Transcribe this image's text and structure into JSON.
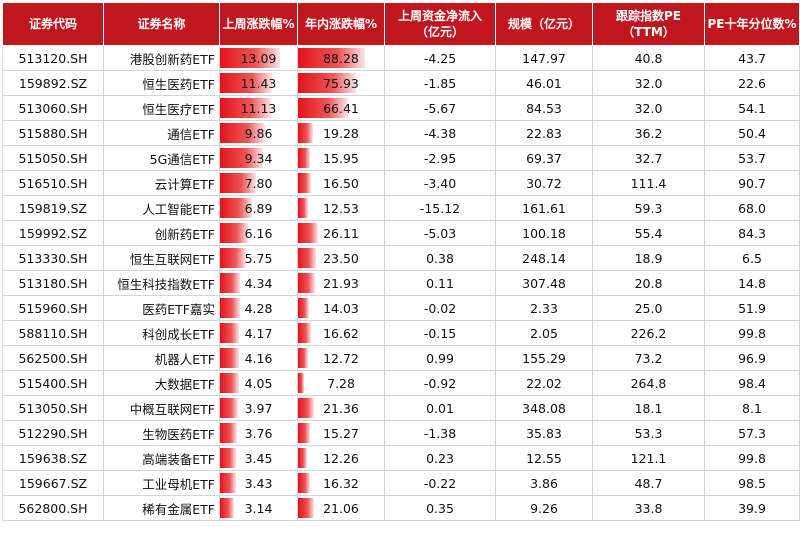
{
  "table": {
    "headers": [
      "证券代码",
      "证券名称",
      "上周涨跌幅%",
      "年内涨跌幅%",
      "上周资金净流入\n（亿元）",
      "规模（亿元）",
      "跟踪指数PE\n（TTM）",
      "PE十年分位数%"
    ],
    "rows": [
      {
        "code": "513120.SH",
        "name": "港股创新药ETF",
        "week": "13.09",
        "ytd": "88.28",
        "flow": "-4.25",
        "size": "147.97",
        "pe": "40.8",
        "pct": "43.7"
      },
      {
        "code": "159892.SZ",
        "name": "恒生医药ETF",
        "week": "11.43",
        "ytd": "75.93",
        "flow": "-1.85",
        "size": "46.01",
        "pe": "32.0",
        "pct": "22.6"
      },
      {
        "code": "513060.SH",
        "name": "恒生医疗ETF",
        "week": "11.13",
        "ytd": "66.41",
        "flow": "-5.67",
        "size": "84.53",
        "pe": "32.0",
        "pct": "54.1"
      },
      {
        "code": "515880.SH",
        "name": "通信ETF",
        "week": "9.86",
        "ytd": "19.28",
        "flow": "-4.38",
        "size": "22.83",
        "pe": "36.2",
        "pct": "50.4"
      },
      {
        "code": "515050.SH",
        "name": "5G通信ETF",
        "week": "9.34",
        "ytd": "15.95",
        "flow": "-2.95",
        "size": "69.37",
        "pe": "32.7",
        "pct": "53.7"
      },
      {
        "code": "516510.SH",
        "name": "云计算ETF",
        "week": "7.80",
        "ytd": "16.50",
        "flow": "-3.40",
        "size": "30.72",
        "pe": "111.4",
        "pct": "90.7"
      },
      {
        "code": "159819.SZ",
        "name": "人工智能ETF",
        "week": "6.89",
        "ytd": "12.53",
        "flow": "-15.12",
        "size": "161.61",
        "pe": "59.3",
        "pct": "68.0"
      },
      {
        "code": "159992.SZ",
        "name": "创新药ETF",
        "week": "6.16",
        "ytd": "26.11",
        "flow": "-5.03",
        "size": "100.18",
        "pe": "55.4",
        "pct": "84.3"
      },
      {
        "code": "513330.SH",
        "name": "恒生互联网ETF",
        "week": "5.75",
        "ytd": "23.50",
        "flow": "0.38",
        "size": "248.14",
        "pe": "18.9",
        "pct": "6.5"
      },
      {
        "code": "513180.SH",
        "name": "恒生科技指数ETF",
        "week": "4.34",
        "ytd": "21.93",
        "flow": "0.11",
        "size": "307.48",
        "pe": "20.8",
        "pct": "14.8"
      },
      {
        "code": "515960.SH",
        "name": "医药ETF嘉实",
        "week": "4.28",
        "ytd": "14.03",
        "flow": "-0.02",
        "size": "2.33",
        "pe": "25.0",
        "pct": "51.9"
      },
      {
        "code": "588110.SH",
        "name": "科创成长ETF",
        "week": "4.17",
        "ytd": "16.62",
        "flow": "-0.15",
        "size": "2.05",
        "pe": "226.2",
        "pct": "99.8"
      },
      {
        "code": "562500.SH",
        "name": "机器人ETF",
        "week": "4.16",
        "ytd": "12.72",
        "flow": "0.99",
        "size": "155.29",
        "pe": "73.2",
        "pct": "96.9"
      },
      {
        "code": "515400.SH",
        "name": "大数据ETF",
        "week": "4.05",
        "ytd": "7.28",
        "flow": "-0.92",
        "size": "22.02",
        "pe": "264.8",
        "pct": "98.4"
      },
      {
        "code": "513050.SH",
        "name": "中概互联网ETF",
        "week": "3.97",
        "ytd": "21.36",
        "flow": "0.01",
        "size": "348.08",
        "pe": "18.1",
        "pct": "8.1"
      },
      {
        "code": "512290.SH",
        "name": "生物医药ETF",
        "week": "3.76",
        "ytd": "15.27",
        "flow": "-1.38",
        "size": "35.83",
        "pe": "53.3",
        "pct": "57.3"
      },
      {
        "code": "159638.SZ",
        "name": "高端装备ETF",
        "week": "3.45",
        "ytd": "12.26",
        "flow": "0.23",
        "size": "12.55",
        "pe": "121.1",
        "pct": "99.8"
      },
      {
        "code": "159667.SZ",
        "name": "工业母机ETF",
        "week": "3.43",
        "ytd": "16.32",
        "flow": "-0.22",
        "size": "3.86",
        "pe": "48.7",
        "pct": "98.5"
      },
      {
        "code": "562800.SH",
        "name": "稀有金属ETF",
        "week": "3.14",
        "ytd": "21.06",
        "flow": "0.35",
        "size": "9.26",
        "pe": "33.8",
        "pct": "39.9"
      }
    ]
  },
  "colors": {
    "header_bg": "#c0171f",
    "header_text": "#ffffff",
    "bar_fill": "#e2141a"
  }
}
